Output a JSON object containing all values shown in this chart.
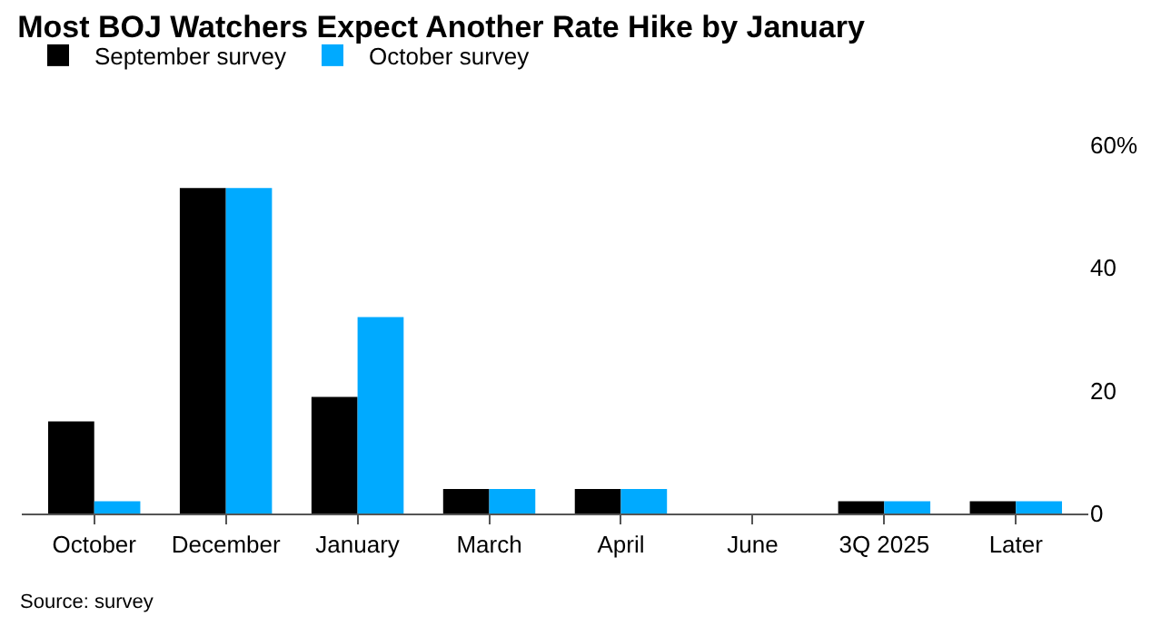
{
  "chart_data": {
    "type": "bar",
    "title": "Most BOJ Watchers Expect Another Rate Hike by January",
    "categories": [
      "October",
      "December",
      "January",
      "March",
      "April",
      "June",
      "3Q 2025",
      "Later"
    ],
    "series": [
      {
        "name": "September survey",
        "color": "#000000",
        "values": [
          15,
          53,
          19,
          4,
          4,
          0,
          2,
          2
        ]
      },
      {
        "name": "October survey",
        "color": "#00aaff",
        "values": [
          2,
          53,
          32,
          4,
          4,
          0,
          2,
          2
        ]
      }
    ],
    "ylim": [
      0,
      60
    ],
    "yticks": [
      0,
      20,
      40,
      {
        "value": 60,
        "label": "60%"
      }
    ],
    "legend": "top left",
    "annotations": [
      "Source: survey"
    ]
  }
}
